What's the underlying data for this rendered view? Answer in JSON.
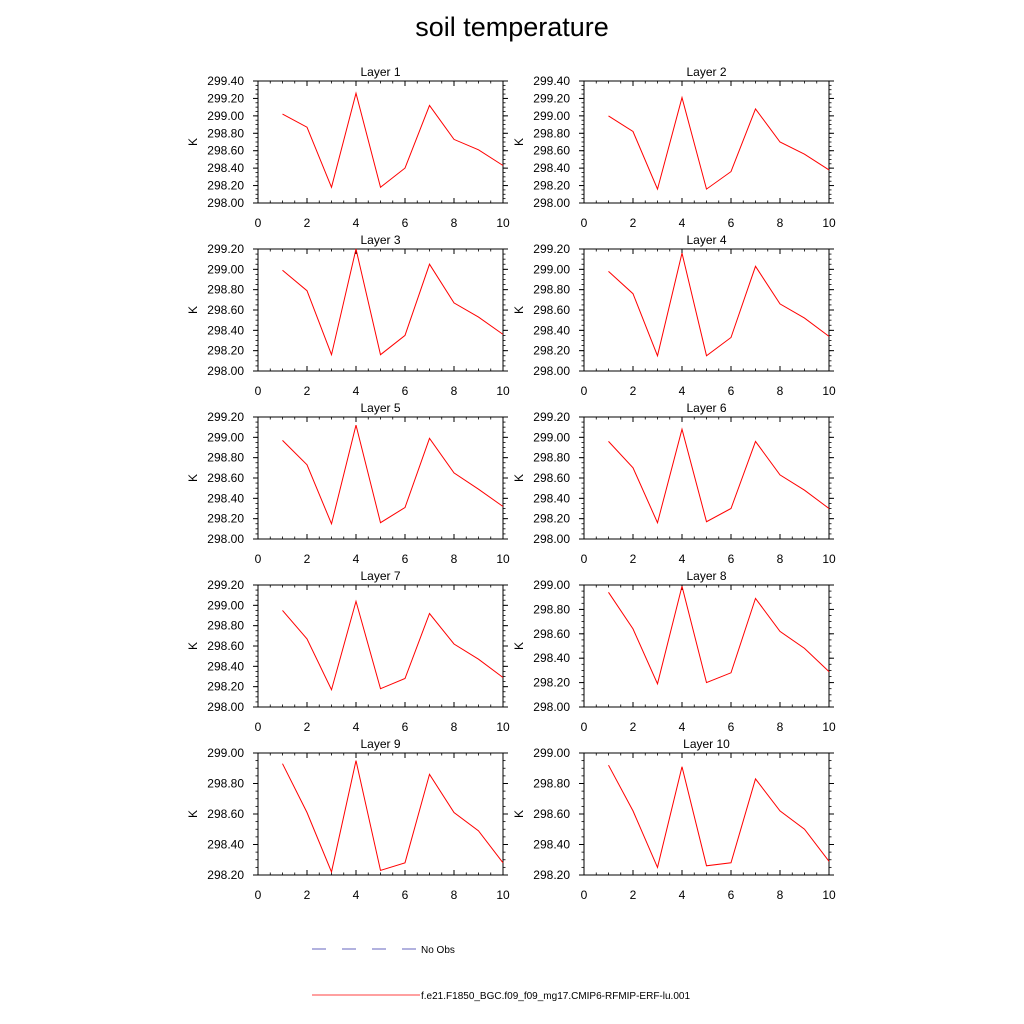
{
  "title": "soil temperature",
  "legend": {
    "obs_label": "No Obs",
    "obs_color": "#3333aa",
    "model_label": "f.e21.F1850_BGC.f09_f09_mg17.CMIP6-RFMIP-ERF-lu.001",
    "model_color": "#ff0000"
  },
  "chart_data": [
    {
      "type": "line",
      "title": "Layer 1",
      "ylabel": "K",
      "xlim": [
        0,
        10
      ],
      "ylim": [
        298.0,
        299.4
      ],
      "xticks": [
        "0",
        "2",
        "4",
        "6",
        "8",
        "10"
      ],
      "yticks": [
        "298.00",
        "298.20",
        "298.40",
        "298.60",
        "298.80",
        "299.00",
        "299.20",
        "299.40"
      ],
      "series": [
        {
          "name": "f.e21.F1850_BGC.f09_f09_mg17.CMIP6-RFMIP-ERF-lu.001",
          "x": [
            1,
            2,
            3,
            4,
            5,
            6,
            7,
            8,
            9,
            10
          ],
          "values": [
            299.02,
            298.87,
            298.18,
            299.26,
            298.18,
            298.4,
            299.12,
            298.73,
            298.61,
            298.43
          ]
        }
      ]
    },
    {
      "type": "line",
      "title": "Layer 2",
      "ylabel": "K",
      "xlim": [
        0,
        10
      ],
      "ylim": [
        298.0,
        299.4
      ],
      "xticks": [
        "0",
        "2",
        "4",
        "6",
        "8",
        "10"
      ],
      "yticks": [
        "298.00",
        "298.20",
        "298.40",
        "298.60",
        "298.80",
        "299.00",
        "299.20",
        "299.40"
      ],
      "series": [
        {
          "name": "f.e21.F1850_BGC.f09_f09_mg17.CMIP6-RFMIP-ERF-lu.001",
          "x": [
            1,
            2,
            3,
            4,
            5,
            6,
            7,
            8,
            9,
            10
          ],
          "values": [
            299.0,
            298.82,
            298.16,
            299.21,
            298.16,
            298.36,
            299.08,
            298.7,
            298.56,
            298.38
          ]
        }
      ]
    },
    {
      "type": "line",
      "title": "Layer 3",
      "ylabel": "K",
      "xlim": [
        0,
        10
      ],
      "ylim": [
        298.0,
        299.2
      ],
      "xticks": [
        "0",
        "2",
        "4",
        "6",
        "8",
        "10"
      ],
      "yticks": [
        "298.00",
        "298.20",
        "298.40",
        "298.60",
        "298.80",
        "299.00",
        "299.20"
      ],
      "series": [
        {
          "name": "f.e21.F1850_BGC.f09_f09_mg17.CMIP6-RFMIP-ERF-lu.001",
          "x": [
            1,
            2,
            3,
            4,
            5,
            6,
            7,
            8,
            9,
            10
          ],
          "values": [
            298.99,
            298.79,
            298.16,
            299.2,
            298.16,
            298.35,
            299.05,
            298.67,
            298.53,
            298.36
          ]
        }
      ]
    },
    {
      "type": "line",
      "title": "Layer 4",
      "ylabel": "K",
      "xlim": [
        0,
        10
      ],
      "ylim": [
        298.0,
        299.2
      ],
      "xticks": [
        "0",
        "2",
        "4",
        "6",
        "8",
        "10"
      ],
      "yticks": [
        "298.00",
        "298.20",
        "298.40",
        "298.60",
        "298.80",
        "299.00",
        "299.20"
      ],
      "series": [
        {
          "name": "f.e21.F1850_BGC.f09_f09_mg17.CMIP6-RFMIP-ERF-lu.001",
          "x": [
            1,
            2,
            3,
            4,
            5,
            6,
            7,
            8,
            9,
            10
          ],
          "values": [
            298.98,
            298.76,
            298.15,
            299.16,
            298.15,
            298.33,
            299.03,
            298.66,
            298.52,
            298.34
          ]
        }
      ]
    },
    {
      "type": "line",
      "title": "Layer 5",
      "ylabel": "K",
      "xlim": [
        0,
        10
      ],
      "ylim": [
        298.0,
        299.2
      ],
      "xticks": [
        "0",
        "2",
        "4",
        "6",
        "8",
        "10"
      ],
      "yticks": [
        "298.00",
        "298.20",
        "298.40",
        "298.60",
        "298.80",
        "299.00",
        "299.20"
      ],
      "series": [
        {
          "name": "f.e21.F1850_BGC.f09_f09_mg17.CMIP6-RFMIP-ERF-lu.001",
          "x": [
            1,
            2,
            3,
            4,
            5,
            6,
            7,
            8,
            9,
            10
          ],
          "values": [
            298.97,
            298.73,
            298.15,
            299.12,
            298.16,
            298.31,
            298.99,
            298.65,
            298.49,
            298.32
          ]
        }
      ]
    },
    {
      "type": "line",
      "title": "Layer 6",
      "ylabel": "K",
      "xlim": [
        0,
        10
      ],
      "ylim": [
        298.0,
        299.2
      ],
      "xticks": [
        "0",
        "2",
        "4",
        "6",
        "8",
        "10"
      ],
      "yticks": [
        "298.00",
        "298.20",
        "298.40",
        "298.60",
        "298.80",
        "299.00",
        "299.20"
      ],
      "series": [
        {
          "name": "f.e21.F1850_BGC.f09_f09_mg17.CMIP6-RFMIP-ERF-lu.001",
          "x": [
            1,
            2,
            3,
            4,
            5,
            6,
            7,
            8,
            9,
            10
          ],
          "values": [
            298.96,
            298.7,
            298.16,
            299.08,
            298.17,
            298.3,
            298.96,
            298.63,
            298.48,
            298.3
          ]
        }
      ]
    },
    {
      "type": "line",
      "title": "Layer 7",
      "ylabel": "K",
      "xlim": [
        0,
        10
      ],
      "ylim": [
        298.0,
        299.2
      ],
      "xticks": [
        "0",
        "2",
        "4",
        "6",
        "8",
        "10"
      ],
      "yticks": [
        "298.00",
        "298.20",
        "298.40",
        "298.60",
        "298.80",
        "299.00",
        "299.20"
      ],
      "series": [
        {
          "name": "f.e21.F1850_BGC.f09_f09_mg17.CMIP6-RFMIP-ERF-lu.001",
          "x": [
            1,
            2,
            3,
            4,
            5,
            6,
            7,
            8,
            9,
            10
          ],
          "values": [
            298.95,
            298.67,
            298.17,
            299.04,
            298.18,
            298.28,
            298.92,
            298.62,
            298.47,
            298.29
          ]
        }
      ]
    },
    {
      "type": "line",
      "title": "Layer 8",
      "ylabel": "K",
      "xlim": [
        0,
        10
      ],
      "ylim": [
        298.0,
        299.0
      ],
      "xticks": [
        "0",
        "2",
        "4",
        "6",
        "8",
        "10"
      ],
      "yticks": [
        "298.00",
        "298.20",
        "298.40",
        "298.60",
        "298.80",
        "299.00"
      ],
      "series": [
        {
          "name": "f.e21.F1850_BGC.f09_f09_mg17.CMIP6-RFMIP-ERF-lu.001",
          "x": [
            1,
            2,
            3,
            4,
            5,
            6,
            7,
            8,
            9,
            10
          ],
          "values": [
            298.94,
            298.64,
            298.19,
            298.99,
            298.2,
            298.28,
            298.89,
            298.62,
            298.48,
            298.29
          ]
        }
      ]
    },
    {
      "type": "line",
      "title": "Layer 9",
      "ylabel": "K",
      "xlim": [
        0,
        10
      ],
      "ylim": [
        298.2,
        299.0
      ],
      "xticks": [
        "0",
        "2",
        "4",
        "6",
        "8",
        "10"
      ],
      "yticks": [
        "298.20",
        "298.40",
        "298.60",
        "298.80",
        "299.00"
      ],
      "series": [
        {
          "name": "f.e21.F1850_BGC.f09_f09_mg17.CMIP6-RFMIP-ERF-lu.001",
          "x": [
            1,
            2,
            3,
            4,
            5,
            6,
            7,
            8,
            9,
            10
          ],
          "values": [
            298.93,
            298.61,
            298.22,
            298.95,
            298.23,
            298.28,
            298.86,
            298.61,
            298.49,
            298.28
          ]
        }
      ]
    },
    {
      "type": "line",
      "title": "Layer 10",
      "ylabel": "K",
      "xlim": [
        0,
        10
      ],
      "ylim": [
        298.2,
        299.0
      ],
      "xticks": [
        "0",
        "2",
        "4",
        "6",
        "8",
        "10"
      ],
      "yticks": [
        "298.20",
        "298.40",
        "298.60",
        "298.80",
        "299.00"
      ],
      "series": [
        {
          "name": "f.e21.F1850_BGC.f09_f09_mg17.CMIP6-RFMIP-ERF-lu.001",
          "x": [
            1,
            2,
            3,
            4,
            5,
            6,
            7,
            8,
            9,
            10
          ],
          "values": [
            298.92,
            298.62,
            298.25,
            298.91,
            298.26,
            298.28,
            298.83,
            298.62,
            298.5,
            298.29
          ]
        }
      ]
    }
  ]
}
